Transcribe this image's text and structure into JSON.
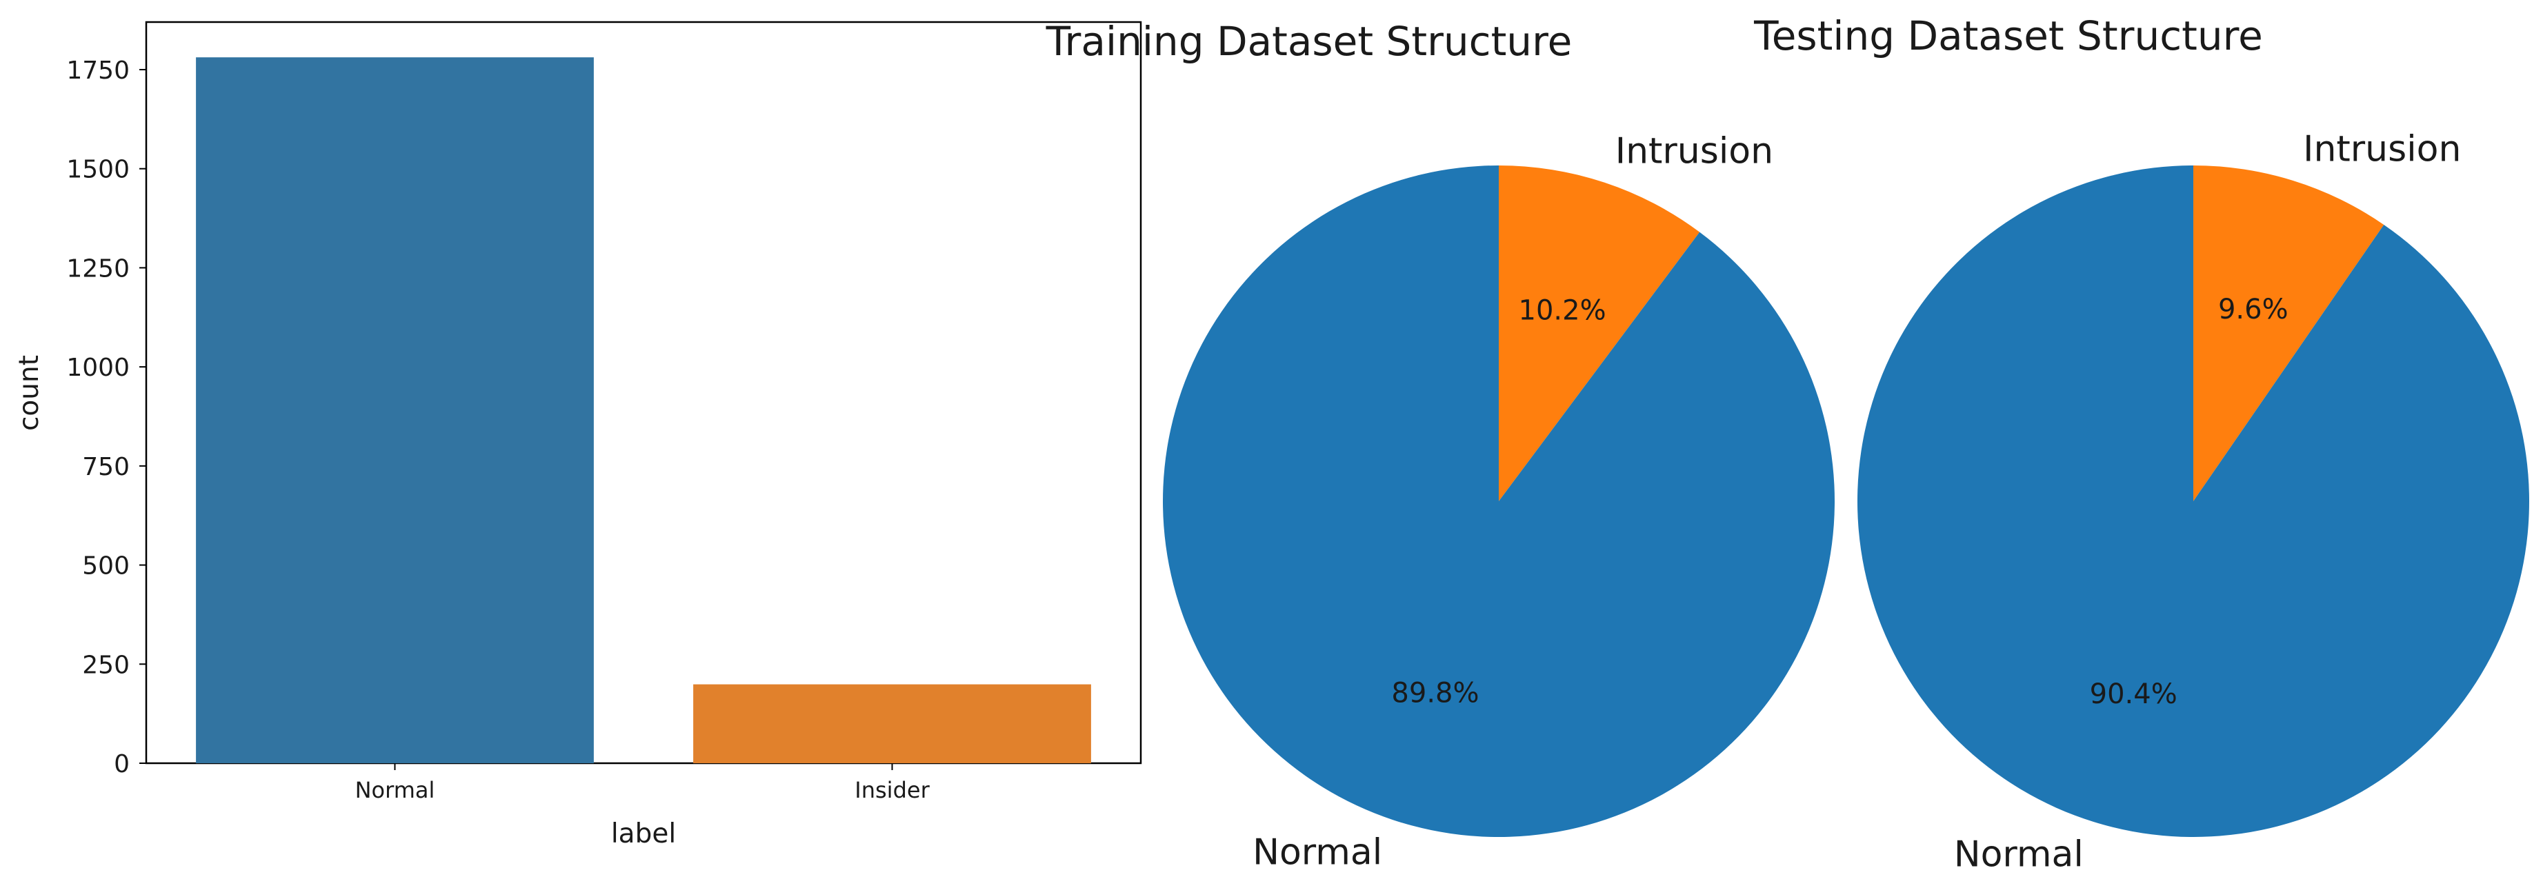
{
  "chart_data": [
    {
      "type": "bar",
      "title": "",
      "xlabel": "label",
      "ylabel": "count",
      "categories": [
        "Normal",
        "Insider"
      ],
      "values": [
        1781,
        199
      ],
      "ylim": [
        0,
        1870
      ],
      "yticks": [
        0,
        250,
        500,
        750,
        1000,
        1250,
        1500,
        1750
      ],
      "colors": [
        "#3274a1",
        "#e1812c"
      ],
      "grid": false,
      "legend": "none"
    },
    {
      "type": "pie",
      "title": "Training Dataset Structure",
      "labels": [
        "Intrusion",
        "Normal"
      ],
      "values": [
        10.2,
        89.8
      ],
      "percent_labels": [
        "10.2%",
        "89.8%"
      ],
      "colors": [
        "#ff7f0e",
        "#1f77b4"
      ],
      "start_angle_deg": 90,
      "direction": "clockwise",
      "legend": "none"
    },
    {
      "type": "pie",
      "title": "Testing Dataset Structure",
      "labels": [
        "Intrusion",
        "Normal"
      ],
      "values": [
        9.6,
        90.4
      ],
      "percent_labels": [
        "9.6%",
        "90.4%"
      ],
      "colors": [
        "#ff7f0e",
        "#1f77b4"
      ],
      "start_angle_deg": 90,
      "direction": "clockwise",
      "legend": "none"
    }
  ]
}
